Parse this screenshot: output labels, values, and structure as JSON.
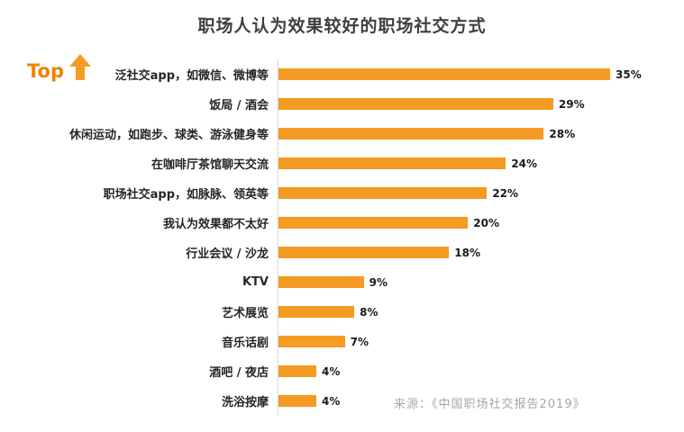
{
  "title": "职场人认为效果较好的职场社交方式",
  "top_label": {
    "text": "Top"
  },
  "source": "来源：《中国职场社交报告2019》",
  "colors": {
    "bar": "#f59a23",
    "accent": "#ef8200",
    "title": "#3f3f3f",
    "source": "#a6a6a6"
  },
  "chart_data": {
    "type": "bar",
    "orientation": "horizontal",
    "title": "职场人认为效果较好的职场社交方式",
    "categories": [
      "泛社交app，如微信、微博等",
      "饭局 / 酒会",
      "休闲运动，如跑步、球类、游泳健身等",
      "在咖啡厅茶馆聊天交流",
      "职场社交app，如脉脉、领英等",
      "我认为效果都不太好",
      "行业会议 / 沙龙",
      "KTV",
      "艺术展览",
      "音乐话剧",
      "酒吧 / 夜店",
      "洗浴按摩"
    ],
    "values": [
      35,
      29,
      28,
      24,
      22,
      20,
      18,
      9,
      8,
      7,
      4,
      4
    ],
    "value_suffix": "%",
    "xlim": [
      0,
      35
    ],
    "grid": false,
    "legend": false,
    "annotation": "Top"
  }
}
